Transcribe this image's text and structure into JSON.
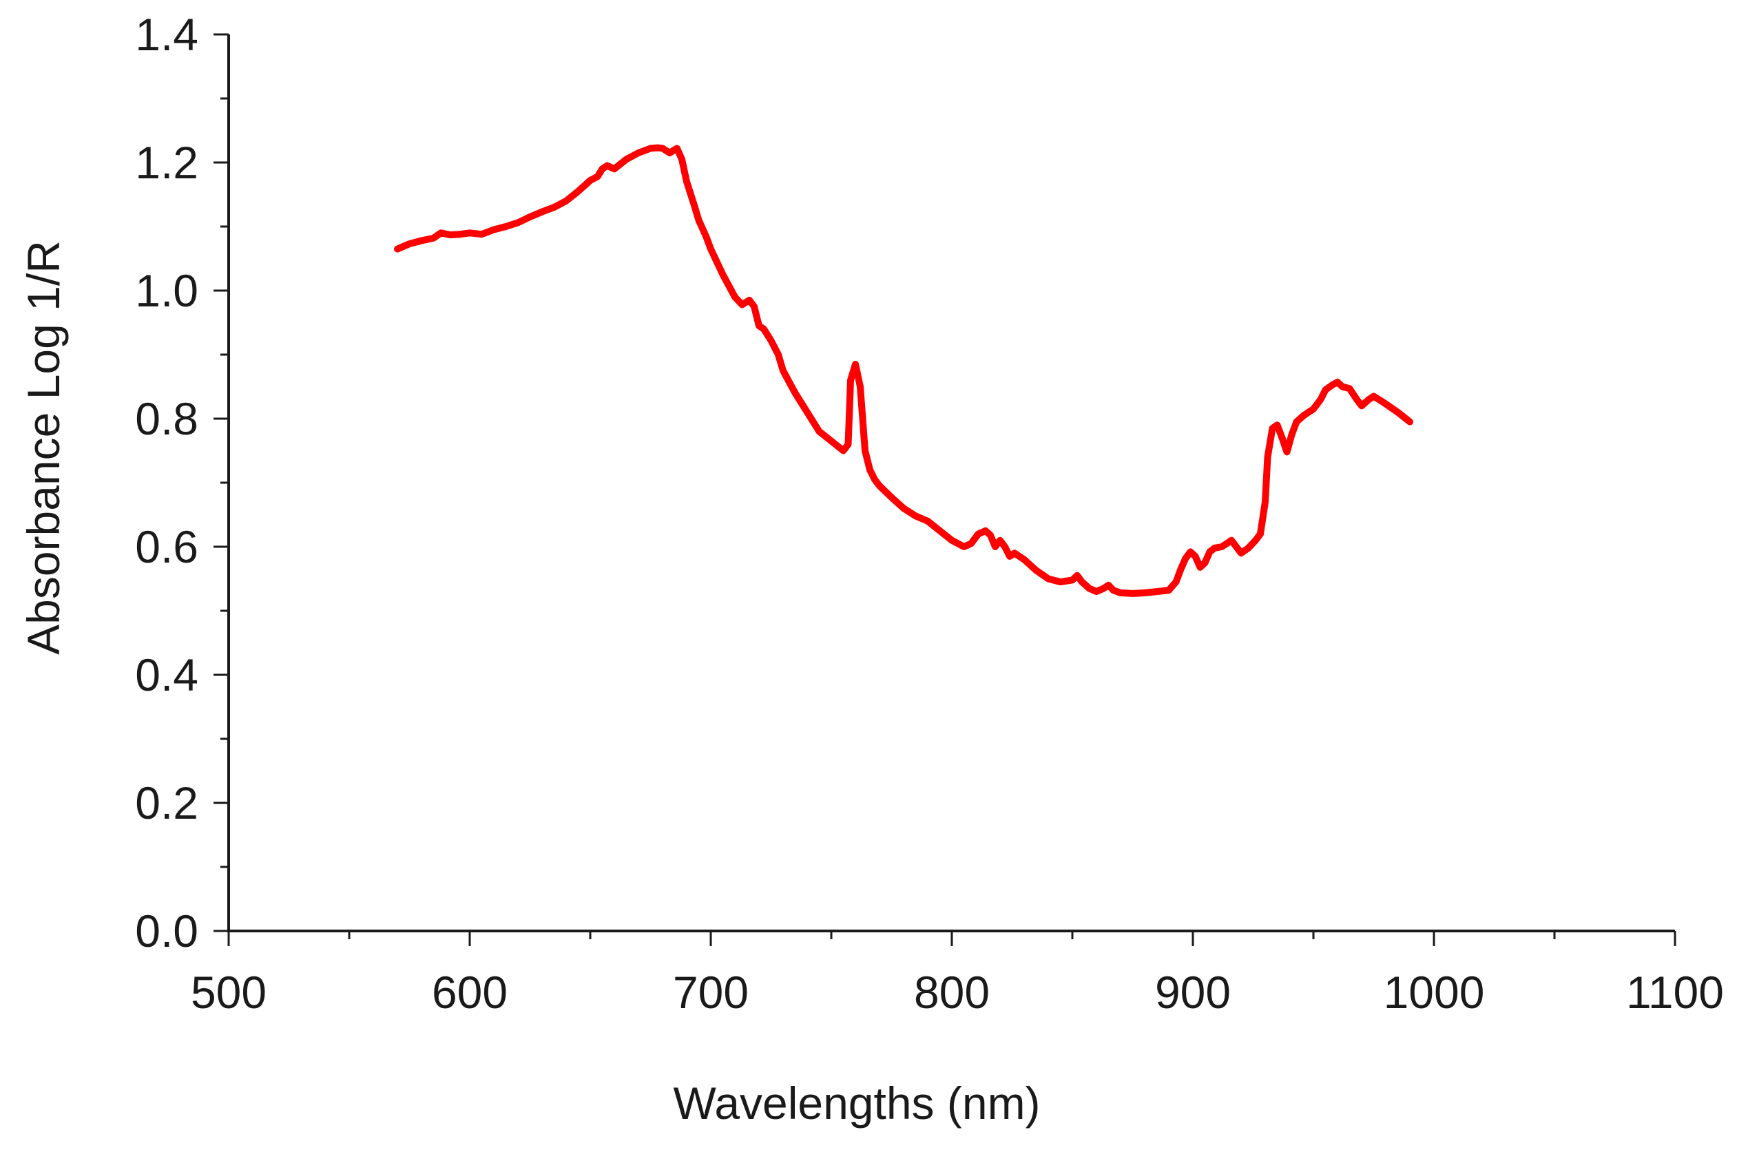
{
  "chart_data": {
    "type": "line",
    "title": "",
    "xlabel": "Wavelengths (nm)",
    "ylabel": "Absorbance Log 1/R",
    "xlim": [
      500,
      1100
    ],
    "ylim": [
      0.0,
      1.4
    ],
    "x_ticks": [
      500,
      600,
      700,
      800,
      900,
      1000,
      1100
    ],
    "x_tick_labels": [
      "500",
      "600",
      "700",
      "800",
      "900",
      "1000",
      "1100"
    ],
    "x_minor_step": 50,
    "y_ticks": [
      0.0,
      0.2,
      0.4,
      0.6,
      0.8,
      1.0,
      1.2,
      1.4
    ],
    "y_tick_labels": [
      "0.0",
      "0.2",
      "0.4",
      "0.6",
      "0.8",
      "1.0",
      "1.2",
      "1.4"
    ],
    "y_minor_step": 0.1,
    "grid": false,
    "legend": "none",
    "series": [
      {
        "name": "Absorbance",
        "color": "#ff0000",
        "x": [
          570,
          575,
          580,
          585,
          588,
          592,
          596,
          600,
          605,
          610,
          615,
          620,
          625,
          630,
          635,
          640,
          645,
          650,
          653,
          655,
          657,
          660,
          665,
          670,
          675,
          678,
          680,
          683,
          685,
          686,
          688,
          690,
          693,
          695,
          698,
          700,
          705,
          710,
          713,
          716,
          718,
          720,
          722,
          725,
          728,
          730,
          735,
          740,
          745,
          750,
          755,
          757,
          758,
          760,
          762,
          764,
          766,
          768,
          770,
          775,
          780,
          785,
          790,
          795,
          800,
          805,
          808,
          811,
          814,
          816,
          818,
          820,
          822,
          824,
          826,
          830,
          835,
          840,
          845,
          850,
          852,
          854,
          857,
          860,
          863,
          865,
          867,
          870,
          875,
          880,
          885,
          890,
          893,
          895,
          897,
          899,
          901,
          903,
          905,
          907,
          909,
          912,
          914,
          916,
          918,
          920,
          923,
          926,
          928,
          930,
          931,
          933,
          935,
          937,
          939,
          941,
          943,
          946,
          950,
          953,
          955,
          958,
          960,
          962,
          965,
          968,
          970,
          973,
          975,
          978,
          980,
          985,
          990
        ],
        "y": [
          1.065,
          1.073,
          1.078,
          1.082,
          1.09,
          1.087,
          1.088,
          1.09,
          1.088,
          1.095,
          1.1,
          1.106,
          1.115,
          1.123,
          1.13,
          1.14,
          1.155,
          1.172,
          1.178,
          1.19,
          1.195,
          1.19,
          1.205,
          1.215,
          1.222,
          1.223,
          1.222,
          1.215,
          1.22,
          1.222,
          1.205,
          1.17,
          1.135,
          1.11,
          1.085,
          1.065,
          1.025,
          0.99,
          0.978,
          0.985,
          0.975,
          0.945,
          0.94,
          0.922,
          0.9,
          0.875,
          0.84,
          0.81,
          0.78,
          0.765,
          0.75,
          0.76,
          0.86,
          0.885,
          0.85,
          0.75,
          0.72,
          0.705,
          0.695,
          0.677,
          0.66,
          0.648,
          0.64,
          0.625,
          0.61,
          0.6,
          0.605,
          0.62,
          0.625,
          0.618,
          0.6,
          0.61,
          0.6,
          0.585,
          0.59,
          0.58,
          0.563,
          0.55,
          0.545,
          0.548,
          0.555,
          0.545,
          0.535,
          0.53,
          0.535,
          0.54,
          0.532,
          0.528,
          0.527,
          0.528,
          0.53,
          0.532,
          0.545,
          0.565,
          0.582,
          0.592,
          0.585,
          0.568,
          0.575,
          0.592,
          0.598,
          0.6,
          0.605,
          0.61,
          0.6,
          0.59,
          0.598,
          0.61,
          0.62,
          0.67,
          0.74,
          0.785,
          0.79,
          0.77,
          0.748,
          0.775,
          0.795,
          0.805,
          0.815,
          0.83,
          0.845,
          0.853,
          0.857,
          0.85,
          0.847,
          0.83,
          0.82,
          0.83,
          0.835,
          0.828,
          0.823,
          0.81,
          0.795
        ]
      }
    ]
  }
}
